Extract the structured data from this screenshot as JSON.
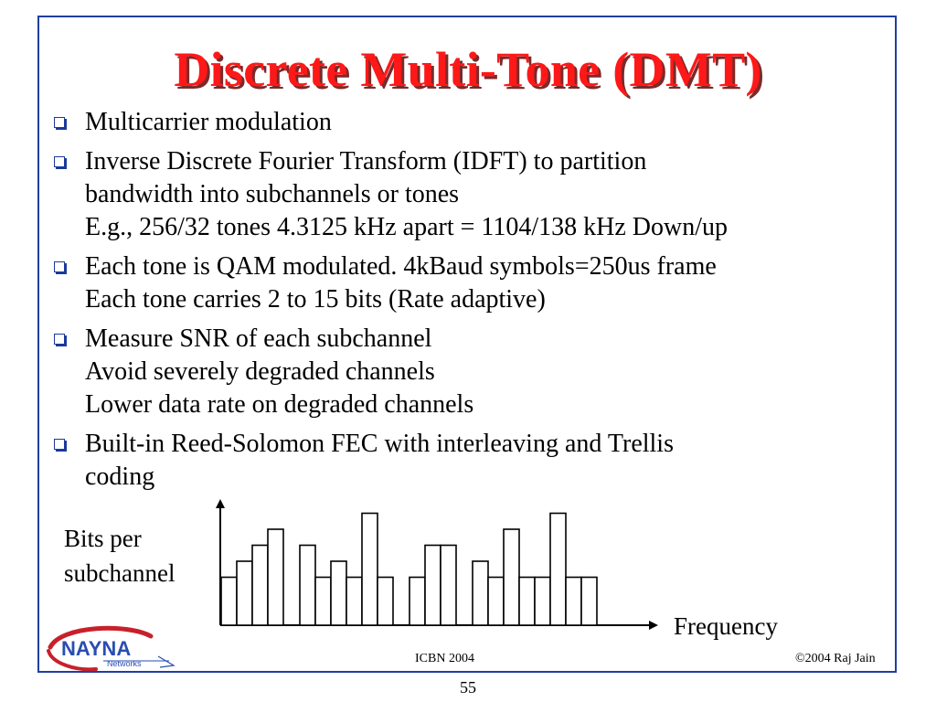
{
  "slide": {
    "title": "Discrete Multi-Tone (DMT)",
    "bullets": [
      {
        "lines": [
          "Multicarrier modulation"
        ]
      },
      {
        "lines": [
          "Inverse Discrete Fourier Transform (IDFT) to partition",
          "bandwidth into subchannels or tones",
          "E.g., 256/32 tones 4.3125 kHz apart = 1104/138 kHz Down/up"
        ]
      },
      {
        "lines": [
          "Each tone is QAM modulated. 4kBaud symbols=250us frame",
          "Each tone carries 2 to 15 bits (Rate adaptive)"
        ]
      },
      {
        "lines": [
          "Measure SNR of each subchannel",
          "Avoid severely degraded channels",
          "Lower data rate on degraded channels"
        ]
      },
      {
        "lines": [
          "Built-in Reed-Solomon FEC with interleaving and Trellis",
          "coding"
        ]
      }
    ]
  },
  "chart_data": {
    "type": "bar",
    "ylabel_lines": [
      "Bits per",
      "subchannel"
    ],
    "xlabel": "Frequency",
    "bar_groups": [
      [
        3,
        4,
        5,
        6
      ],
      [
        5,
        3,
        4,
        3,
        7,
        3
      ],
      [
        3,
        5,
        5
      ],
      [
        4,
        3,
        6,
        3,
        3,
        7,
        3,
        3
      ]
    ],
    "ylim": [
      0,
      8
    ],
    "grid": false,
    "legend": "none"
  },
  "footer": {
    "conference": "ICBN 2004",
    "copyright": "©2004 Raj Jain",
    "page_number": "55"
  },
  "logo": {
    "text": "NAYNA",
    "subtext": "Networks"
  },
  "colors": {
    "title": "#ff1818",
    "title_shadow": "#7a2a2a",
    "frame": "#1f3fa0",
    "bullet": "#1a3a9a",
    "logo_red": "#c8202a",
    "logo_blue": "#2a4db0"
  }
}
